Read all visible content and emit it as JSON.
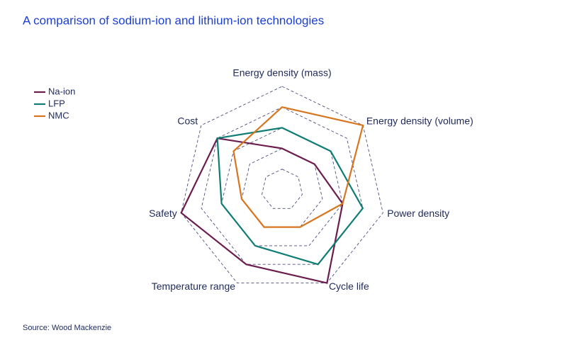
{
  "chart_data": {
    "type": "radar",
    "title": "A comparison of sodium-ion and lithium-ion technologies",
    "source": "Source: Wood Mackenzie",
    "categories": [
      "Energy density (mass)",
      "Energy density (volume)",
      "Power density",
      "Cycle life",
      "Temperature range",
      "Safety",
      "Cost"
    ],
    "rlim": [
      0,
      5
    ],
    "rticks": [
      1,
      2,
      3,
      4,
      5
    ],
    "grid": true,
    "legend": "top-left",
    "series": [
      {
        "name": "Na-ion",
        "color": "#6b1d4e",
        "values": [
          2,
          2,
          3,
          5,
          4,
          5,
          4
        ]
      },
      {
        "name": "LFP",
        "color": "#0f7d74",
        "values": [
          3,
          3,
          4,
          4,
          3,
          3,
          4
        ]
      },
      {
        "name": "NMC",
        "color": "#d7761f",
        "values": [
          4,
          5,
          3,
          2,
          2,
          2,
          3
        ]
      }
    ]
  }
}
